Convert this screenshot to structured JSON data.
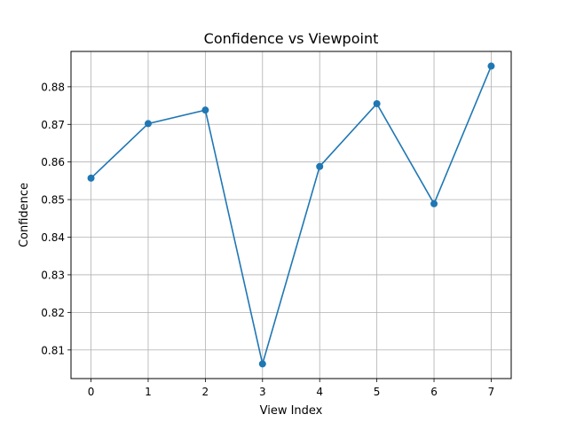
{
  "chart_data": {
    "type": "line",
    "title": "Confidence vs Viewpoint",
    "xlabel": "View Index",
    "ylabel": "Confidence",
    "x": [
      0,
      1,
      2,
      3,
      4,
      5,
      6,
      7
    ],
    "series": [
      {
        "values": [
          0.8557,
          0.8702,
          0.8738,
          0.8063,
          0.8588,
          0.8755,
          0.8489,
          0.8855
        ],
        "color": "#1f77b4",
        "marker": "circle"
      }
    ],
    "xlim": [
      -0.35,
      7.35
    ],
    "ylim": [
      0.8024,
      0.8894
    ],
    "xticks": [
      "0",
      "1",
      "2",
      "3",
      "4",
      "5",
      "6",
      "7"
    ],
    "yticks": [
      "0.81",
      "0.82",
      "0.83",
      "0.84",
      "0.85",
      "0.86",
      "0.87",
      "0.88"
    ],
    "grid": true,
    "grid_color": "#b0b0b0"
  }
}
